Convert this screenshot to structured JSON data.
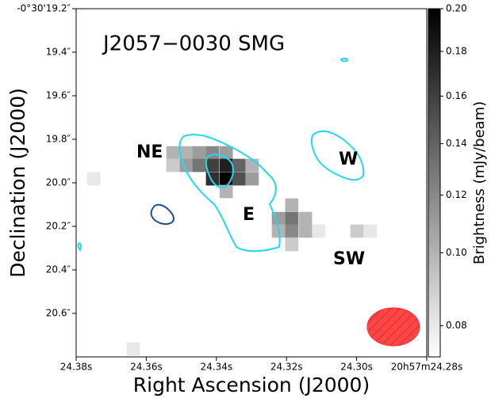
{
  "chart_data": {
    "type": "image",
    "title": "J2057−0030 SMG",
    "x_label": "Right Ascension (J2000)",
    "y_label": "Declination (J2000)",
    "colorbar_label": "Brightness (mJy/beam)",
    "annotations": [
      {
        "text": "NE",
        "color": "#555555"
      },
      {
        "text": "E",
        "color": "#1ab0e8"
      },
      {
        "text": "W",
        "color": "#1ab0e8"
      },
      {
        "text": "SW",
        "color": "#555555"
      }
    ],
    "xlim": [
      24.38,
      24.28
    ],
    "xticks": [
      {
        "value": 24.38,
        "label": "24.38s"
      },
      {
        "value": 24.36,
        "label": "24.36s"
      },
      {
        "value": 24.34,
        "label": "24.34s"
      },
      {
        "value": 24.32,
        "label": "24.32s"
      },
      {
        "value": 24.3,
        "label": "24.30s"
      },
      {
        "value": 24.28,
        "label": "20h57m24.28s"
      }
    ],
    "ylim": [
      19.2,
      20.8
    ],
    "yticks": [
      {
        "value": 19.2,
        "label": "-0°30'19.2″"
      },
      {
        "value": 19.4,
        "label": "19.4″"
      },
      {
        "value": 19.6,
        "label": "19.6″"
      },
      {
        "value": 19.8,
        "label": "19.8″"
      },
      {
        "value": 20.0,
        "label": "20.0″"
      },
      {
        "value": 20.2,
        "label": "20.2″"
      },
      {
        "value": 20.4,
        "label": "20.4″"
      },
      {
        "value": 20.6,
        "label": "20.6″"
      }
    ],
    "clim": [
      0.075,
      0.2
    ],
    "cticks": [
      {
        "value": 0.08,
        "label": "0.08"
      },
      {
        "value": 0.1,
        "label": "0.10"
      },
      {
        "value": 0.12,
        "label": "0.12"
      },
      {
        "value": 0.14,
        "label": "0.14"
      },
      {
        "value": 0.16,
        "label": "0.16"
      },
      {
        "value": 0.18,
        "label": "0.18"
      },
      {
        "value": 0.2,
        "label": "0.20"
      }
    ],
    "pixels": {
      "ra": [
        24.3524,
        24.3486,
        24.3449,
        24.3411,
        24.3372,
        24.3524,
        24.3486,
        24.3449,
        24.3411,
        24.3372,
        24.3336,
        24.3298,
        24.3411,
        24.3372,
        24.3336,
        24.3298,
        24.3372,
        24.3185,
        24.3223,
        24.3185,
        24.3146,
        24.3223,
        24.3185,
        24.3146,
        24.3108,
        24.3185,
        24.375,
        24.3637,
        24.2999,
        24.2961
      ],
      "dec": [
        19.862,
        19.862,
        19.862,
        19.862,
        19.862,
        19.92,
        19.92,
        19.92,
        19.92,
        19.92,
        19.92,
        19.92,
        19.982,
        19.982,
        19.982,
        19.982,
        20.04,
        20.102,
        20.164,
        20.164,
        20.164,
        20.222,
        20.222,
        20.222,
        20.222,
        20.284,
        19.982,
        20.764,
        20.222,
        20.222
      ],
      "values": [
        0.1,
        0.1,
        0.11,
        0.12,
        0.11,
        0.09,
        0.11,
        0.13,
        0.16,
        0.18,
        0.14,
        0.1,
        0.17,
        0.2,
        0.15,
        0.11,
        0.1,
        0.1,
        0.11,
        0.13,
        0.1,
        0.1,
        0.12,
        0.1,
        0.08,
        0.09,
        0.08,
        0.08,
        0.09,
        0.08
      ]
    }
  }
}
